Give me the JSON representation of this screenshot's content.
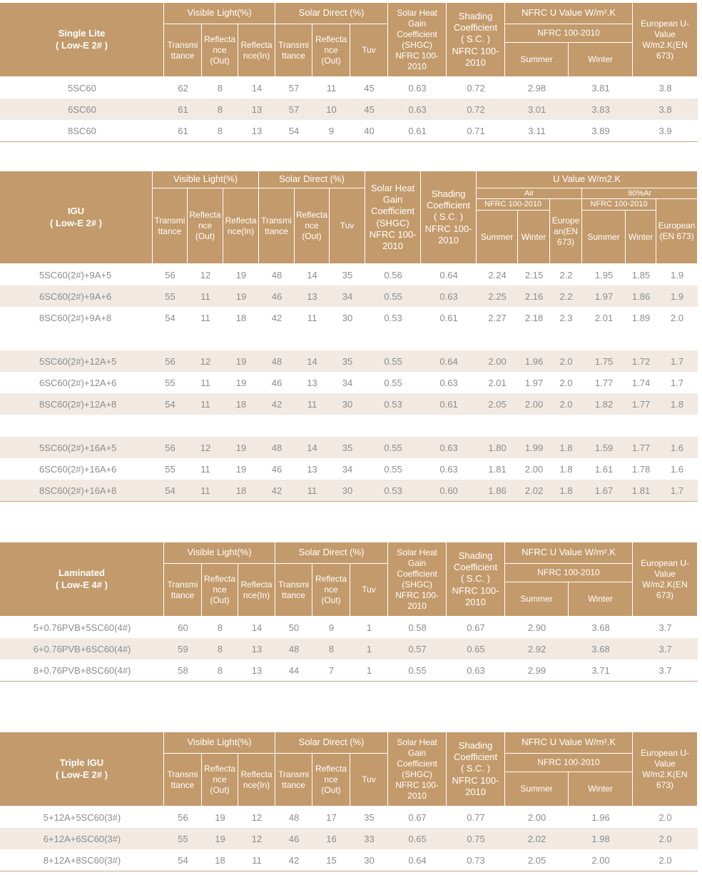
{
  "headers": {
    "visible_light": "Visible Light(%)",
    "solar_direct": "Solar  Direct (%)",
    "transmittance": "Transmi\nttance",
    "reflectance_out": "Reflecta\nnce\n(Out)",
    "reflectance_in": "Reflecta\nnce(In)",
    "tuv": "Tuv",
    "shgc": "Solar Heat\nGain\nCoefficient\n(SHGC)\nNFRC 100-\n2010",
    "sc": "Shading\nCoefficient\n( S.C. )\nNFRC 100-\n2010",
    "nfrc_u": "NFRC U Value W/m².K",
    "nfrc_std": "NFRC 100-2010",
    "summer": "Summer",
    "winter": "Winter",
    "european": "European U-\nValue\nW/m2.K(EN\n673)"
  },
  "igu_headers": {
    "u_value": "U Value W/m2.K",
    "air": "Air",
    "argon": "90%Ar",
    "nfrc_std": "NFRC 100-2010",
    "european_air": "Europe\nan(EN\n673)",
    "european_argon": "European\n(EN 673)"
  },
  "tables": [
    {
      "title": "Single Lite",
      "subtitle": "( Low-E 2# )",
      "rows": [
        [
          "5SC60",
          "62",
          "8",
          "14",
          "57",
          "11",
          "45",
          "0.63",
          "0.72",
          "2.98",
          "3.81",
          "3.8"
        ],
        [
          "6SC60",
          "61",
          "8",
          "13",
          "57",
          "10",
          "45",
          "0.63",
          "0.72",
          "3.01",
          "3.83",
          "3.8"
        ],
        [
          "8SC60",
          "61",
          "8",
          "13",
          "54",
          "9",
          "40",
          "0.61",
          "0.71",
          "3.11",
          "3.89",
          "3.9"
        ]
      ]
    },
    {
      "title": "IGU",
      "subtitle": "( Low-E 2# )",
      "groups": [
        [
          [
            "5SC60(2#)+9A+5",
            "56",
            "12",
            "19",
            "48",
            "14",
            "35",
            "0.56",
            "0.64",
            "2.24",
            "2.15",
            "2.2",
            "1.95",
            "1.85",
            "1.9"
          ],
          [
            "6SC60(2#)+9A+6",
            "55",
            "11",
            "19",
            "46",
            "13",
            "34",
            "0.55",
            "0.63",
            "2.25",
            "2.16",
            "2.2",
            "1.97",
            "1.86",
            "1.9"
          ],
          [
            "8SC60(2#)+9A+8",
            "54",
            "11",
            "18",
            "42",
            "11",
            "30",
            "0.53",
            "0.61",
            "2.27",
            "2.18",
            "2.3",
            "2.01",
            "1.89",
            "2.0"
          ]
        ],
        [
          [
            "5SC60(2#)+12A+5",
            "56",
            "12",
            "19",
            "48",
            "14",
            "35",
            "0.55",
            "0.64",
            "2.00",
            "1.96",
            "2.0",
            "1.75",
            "1.72",
            "1.7"
          ],
          [
            "6SC60(2#)+12A+6",
            "55",
            "11",
            "19",
            "46",
            "13",
            "34",
            "0.55",
            "0.63",
            "2.01",
            "1.97",
            "2.0",
            "1.77",
            "1.74",
            "1.7"
          ],
          [
            "8SC60(2#)+12A+8",
            "54",
            "11",
            "18",
            "42",
            "11",
            "30",
            "0.53",
            "0.61",
            "2.05",
            "2.00",
            "2.0",
            "1.82",
            "1.77",
            "1.8"
          ]
        ],
        [
          [
            "5SC60(2#)+16A+5",
            "56",
            "12",
            "19",
            "48",
            "14",
            "35",
            "0.55",
            "0.63",
            "1.80",
            "1.99",
            "1.8",
            "1.59",
            "1.77",
            "1.6"
          ],
          [
            "6SC60(2#)+16A+6",
            "55",
            "11",
            "19",
            "46",
            "13",
            "34",
            "0.55",
            "0.63",
            "1.81",
            "2.00",
            "1.8",
            "1.61",
            "1.78",
            "1.6"
          ],
          [
            "8SC60(2#)+16A+8",
            "54",
            "11",
            "18",
            "42",
            "11",
            "30",
            "0.53",
            "0.60",
            "1.86",
            "2.02",
            "1.8",
            "1.67",
            "1.81",
            "1.7"
          ]
        ]
      ]
    },
    {
      "title": "Laminated",
      "subtitle": "( Low-E 4# )",
      "rows": [
        [
          "5+0.76PVB+5SC60(4#)",
          "60",
          "8",
          "14",
          "50",
          "9",
          "1",
          "0.58",
          "0.67",
          "2.90",
          "3.68",
          "3.7"
        ],
        [
          "6+0.76PVB+6SC60(4#)",
          "59",
          "8",
          "13",
          "48",
          "8",
          "1",
          "0.57",
          "0.65",
          "2.92",
          "3.68",
          "3.7"
        ],
        [
          "8+0.76PVB+8SC60(4#)",
          "58",
          "8",
          "13",
          "44",
          "7",
          "1",
          "0.55",
          "0.63",
          "2.99",
          "3.71",
          "3.7"
        ]
      ]
    },
    {
      "title": "Triple IGU",
      "subtitle": "( Low-E 2# )",
      "rows": [
        [
          "5+12A+5SC60(3#)",
          "56",
          "19",
          "12",
          "48",
          "17",
          "35",
          "0.67",
          "0.77",
          "2.00",
          "1.96",
          "2.0"
        ],
        [
          "6+12A+6SC60(3#)",
          "55",
          "19",
          "12",
          "46",
          "16",
          "33",
          "0.65",
          "0.75",
          "2.02",
          "1.98",
          "2.0"
        ],
        [
          "8+12A+8SC60(3#)",
          "54",
          "18",
          "11",
          "42",
          "15",
          "30",
          "0.64",
          "0.73",
          "2.05",
          "2.00",
          "2.0"
        ]
      ]
    }
  ],
  "colors": {
    "header_bg": "#c39a6b",
    "shade_row": "#f2e9e2",
    "text": "#8c8c8c"
  }
}
